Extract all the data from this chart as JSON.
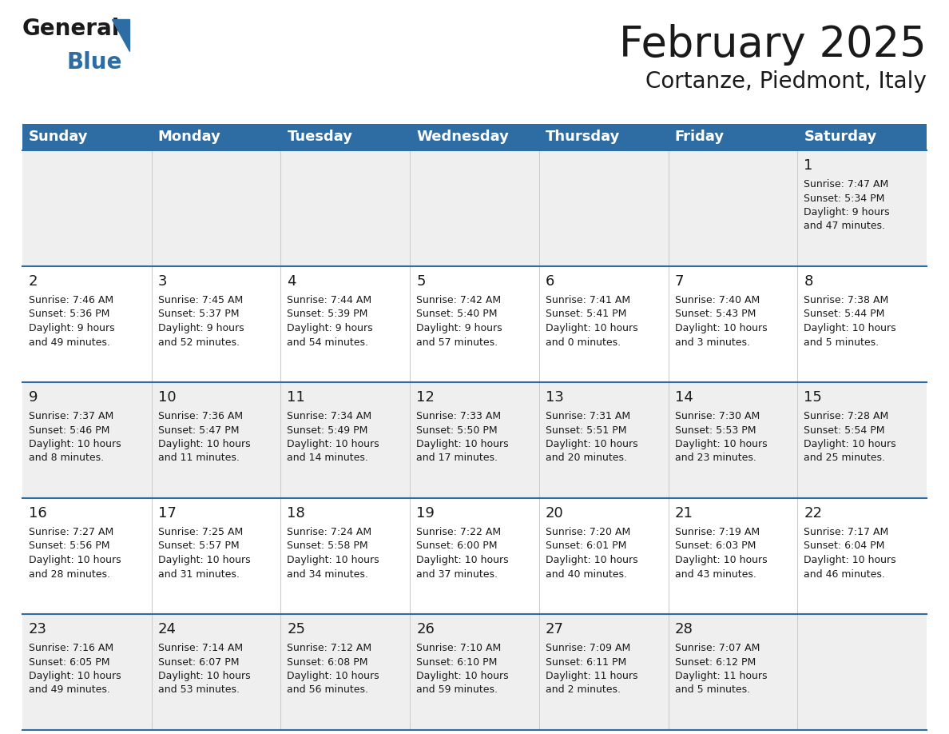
{
  "title": "February 2025",
  "subtitle": "Cortanze, Piedmont, Italy",
  "header_color": "#2E6DA4",
  "header_text_color": "#FFFFFF",
  "bg_color": "#FFFFFF",
  "row_bg_gray": "#EFEFEF",
  "row_bg_white": "#FFFFFF",
  "line_color": "#2E6DA4",
  "days_of_week": [
    "Sunday",
    "Monday",
    "Tuesday",
    "Wednesday",
    "Thursday",
    "Friday",
    "Saturday"
  ],
  "weeks": [
    [
      {
        "day": "",
        "info": ""
      },
      {
        "day": "",
        "info": ""
      },
      {
        "day": "",
        "info": ""
      },
      {
        "day": "",
        "info": ""
      },
      {
        "day": "",
        "info": ""
      },
      {
        "day": "",
        "info": ""
      },
      {
        "day": "1",
        "info": "Sunrise: 7:47 AM\nSunset: 5:34 PM\nDaylight: 9 hours\nand 47 minutes."
      }
    ],
    [
      {
        "day": "2",
        "info": "Sunrise: 7:46 AM\nSunset: 5:36 PM\nDaylight: 9 hours\nand 49 minutes."
      },
      {
        "day": "3",
        "info": "Sunrise: 7:45 AM\nSunset: 5:37 PM\nDaylight: 9 hours\nand 52 minutes."
      },
      {
        "day": "4",
        "info": "Sunrise: 7:44 AM\nSunset: 5:39 PM\nDaylight: 9 hours\nand 54 minutes."
      },
      {
        "day": "5",
        "info": "Sunrise: 7:42 AM\nSunset: 5:40 PM\nDaylight: 9 hours\nand 57 minutes."
      },
      {
        "day": "6",
        "info": "Sunrise: 7:41 AM\nSunset: 5:41 PM\nDaylight: 10 hours\nand 0 minutes."
      },
      {
        "day": "7",
        "info": "Sunrise: 7:40 AM\nSunset: 5:43 PM\nDaylight: 10 hours\nand 3 minutes."
      },
      {
        "day": "8",
        "info": "Sunrise: 7:38 AM\nSunset: 5:44 PM\nDaylight: 10 hours\nand 5 minutes."
      }
    ],
    [
      {
        "day": "9",
        "info": "Sunrise: 7:37 AM\nSunset: 5:46 PM\nDaylight: 10 hours\nand 8 minutes."
      },
      {
        "day": "10",
        "info": "Sunrise: 7:36 AM\nSunset: 5:47 PM\nDaylight: 10 hours\nand 11 minutes."
      },
      {
        "day": "11",
        "info": "Sunrise: 7:34 AM\nSunset: 5:49 PM\nDaylight: 10 hours\nand 14 minutes."
      },
      {
        "day": "12",
        "info": "Sunrise: 7:33 AM\nSunset: 5:50 PM\nDaylight: 10 hours\nand 17 minutes."
      },
      {
        "day": "13",
        "info": "Sunrise: 7:31 AM\nSunset: 5:51 PM\nDaylight: 10 hours\nand 20 minutes."
      },
      {
        "day": "14",
        "info": "Sunrise: 7:30 AM\nSunset: 5:53 PM\nDaylight: 10 hours\nand 23 minutes."
      },
      {
        "day": "15",
        "info": "Sunrise: 7:28 AM\nSunset: 5:54 PM\nDaylight: 10 hours\nand 25 minutes."
      }
    ],
    [
      {
        "day": "16",
        "info": "Sunrise: 7:27 AM\nSunset: 5:56 PM\nDaylight: 10 hours\nand 28 minutes."
      },
      {
        "day": "17",
        "info": "Sunrise: 7:25 AM\nSunset: 5:57 PM\nDaylight: 10 hours\nand 31 minutes."
      },
      {
        "day": "18",
        "info": "Sunrise: 7:24 AM\nSunset: 5:58 PM\nDaylight: 10 hours\nand 34 minutes."
      },
      {
        "day": "19",
        "info": "Sunrise: 7:22 AM\nSunset: 6:00 PM\nDaylight: 10 hours\nand 37 minutes."
      },
      {
        "day": "20",
        "info": "Sunrise: 7:20 AM\nSunset: 6:01 PM\nDaylight: 10 hours\nand 40 minutes."
      },
      {
        "day": "21",
        "info": "Sunrise: 7:19 AM\nSunset: 6:03 PM\nDaylight: 10 hours\nand 43 minutes."
      },
      {
        "day": "22",
        "info": "Sunrise: 7:17 AM\nSunset: 6:04 PM\nDaylight: 10 hours\nand 46 minutes."
      }
    ],
    [
      {
        "day": "23",
        "info": "Sunrise: 7:16 AM\nSunset: 6:05 PM\nDaylight: 10 hours\nand 49 minutes."
      },
      {
        "day": "24",
        "info": "Sunrise: 7:14 AM\nSunset: 6:07 PM\nDaylight: 10 hours\nand 53 minutes."
      },
      {
        "day": "25",
        "info": "Sunrise: 7:12 AM\nSunset: 6:08 PM\nDaylight: 10 hours\nand 56 minutes."
      },
      {
        "day": "26",
        "info": "Sunrise: 7:10 AM\nSunset: 6:10 PM\nDaylight: 10 hours\nand 59 minutes."
      },
      {
        "day": "27",
        "info": "Sunrise: 7:09 AM\nSunset: 6:11 PM\nDaylight: 11 hours\nand 2 minutes."
      },
      {
        "day": "28",
        "info": "Sunrise: 7:07 AM\nSunset: 6:12 PM\nDaylight: 11 hours\nand 5 minutes."
      },
      {
        "day": "",
        "info": ""
      }
    ]
  ],
  "logo_triangle_color": "#2E6DA4",
  "title_fontsize": 38,
  "subtitle_fontsize": 20,
  "header_fontsize": 13,
  "day_number_fontsize": 13,
  "info_fontsize": 9
}
